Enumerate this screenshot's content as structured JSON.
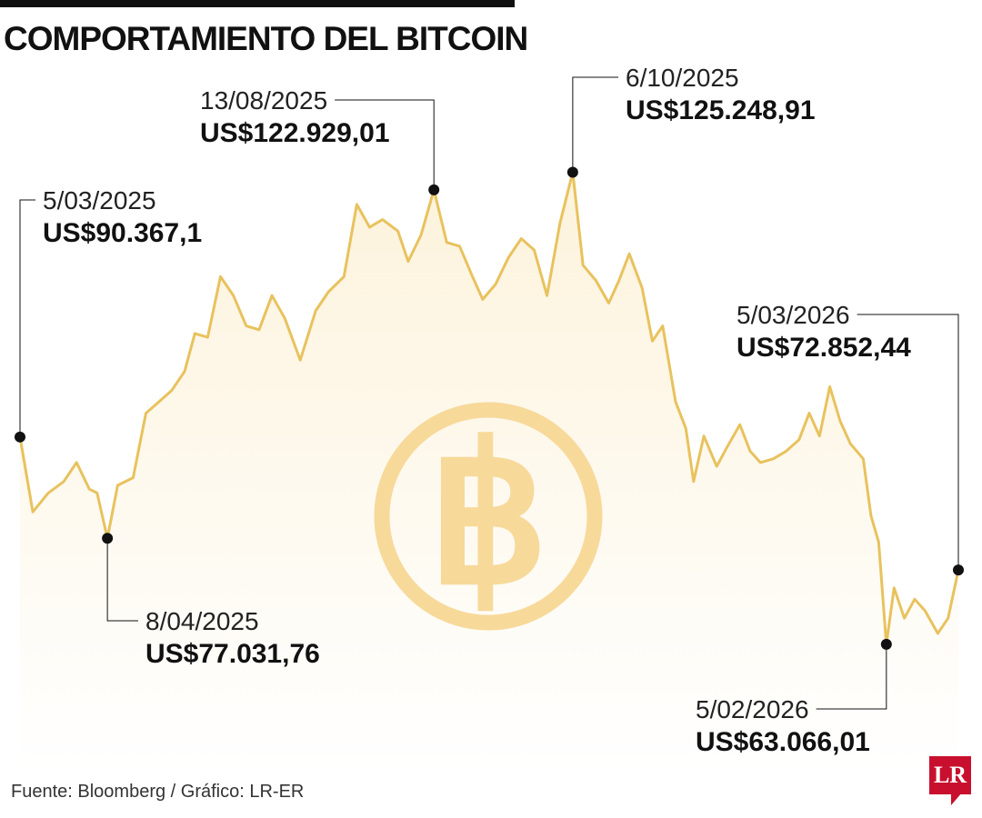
{
  "header": {
    "title": "COMPORTAMIENTO DEL BITCOIN"
  },
  "footer": {
    "source": "Fuente: Bloomberg / Gráfico: LR-ER",
    "logo_text": "LR"
  },
  "colors": {
    "line": "#e8c25e",
    "area": "#fdf3dc",
    "watermark": "#f7d99a",
    "marker": "#111111",
    "brand": "#c8102e"
  },
  "chart_data": {
    "type": "area",
    "title": "COMPORTAMIENTO DEL BITCOIN",
    "xlabel": "",
    "ylabel": "",
    "x_range": [
      "2025-03-05",
      "2026-03-05"
    ],
    "ylim": [
      50000,
      135000
    ],
    "grid": false,
    "legend": "none",
    "series": [
      {
        "points": [
          [
            "2025-03-05",
            90367
          ],
          [
            "2025-03-10",
            80500
          ],
          [
            "2025-03-16",
            83000
          ],
          [
            "2025-03-22",
            84500
          ],
          [
            "2025-03-27",
            87000
          ],
          [
            "2025-04-01",
            83500
          ],
          [
            "2025-04-04",
            83000
          ],
          [
            "2025-04-08",
            77032
          ],
          [
            "2025-04-12",
            84000
          ],
          [
            "2025-04-18",
            85000
          ],
          [
            "2025-04-23",
            93500
          ],
          [
            "2025-04-28",
            95000
          ],
          [
            "2025-05-03",
            96500
          ],
          [
            "2025-05-08",
            99000
          ],
          [
            "2025-05-12",
            104000
          ],
          [
            "2025-05-17",
            103500
          ],
          [
            "2025-05-22",
            111500
          ],
          [
            "2025-05-27",
            109000
          ],
          [
            "2025-06-01",
            105000
          ],
          [
            "2025-06-06",
            104500
          ],
          [
            "2025-06-11",
            109000
          ],
          [
            "2025-06-16",
            106000
          ],
          [
            "2025-06-22",
            100500
          ],
          [
            "2025-06-28",
            107000
          ],
          [
            "2025-07-03",
            109500
          ],
          [
            "2025-07-09",
            111500
          ],
          [
            "2025-07-14",
            121000
          ],
          [
            "2025-07-19",
            118000
          ],
          [
            "2025-07-24",
            119000
          ],
          [
            "2025-07-30",
            117500
          ],
          [
            "2025-08-03",
            113500
          ],
          [
            "2025-08-08",
            117000
          ],
          [
            "2025-08-13",
            122929
          ],
          [
            "2025-08-18",
            116000
          ],
          [
            "2025-08-23",
            115500
          ],
          [
            "2025-08-28",
            111500
          ],
          [
            "2025-09-01",
            108500
          ],
          [
            "2025-09-06",
            110500
          ],
          [
            "2025-09-11",
            114000
          ],
          [
            "2025-09-16",
            116500
          ],
          [
            "2025-09-21",
            115000
          ],
          [
            "2025-09-26",
            109000
          ],
          [
            "2025-10-01",
            118500
          ],
          [
            "2025-10-06",
            125249
          ],
          [
            "2025-10-10",
            113000
          ],
          [
            "2025-10-15",
            111000
          ],
          [
            "2025-10-20",
            108000
          ],
          [
            "2025-10-24",
            111000
          ],
          [
            "2025-10-28",
            114500
          ],
          [
            "2025-11-02",
            110000
          ],
          [
            "2025-11-06",
            103000
          ],
          [
            "2025-11-10",
            105000
          ],
          [
            "2025-11-15",
            95000
          ],
          [
            "2025-11-19",
            91500
          ],
          [
            "2025-11-22",
            84500
          ],
          [
            "2025-11-26",
            90500
          ],
          [
            "2025-12-01",
            86500
          ],
          [
            "2025-12-05",
            89000
          ],
          [
            "2025-12-10",
            92000
          ],
          [
            "2025-12-14",
            88500
          ],
          [
            "2025-12-18",
            87000
          ],
          [
            "2025-12-23",
            87500
          ],
          [
            "2025-12-28",
            88500
          ],
          [
            "2026-01-02",
            90000
          ],
          [
            "2026-01-06",
            93500
          ],
          [
            "2026-01-10",
            90500
          ],
          [
            "2026-01-14",
            97000
          ],
          [
            "2026-01-18",
            92500
          ],
          [
            "2026-01-22",
            89500
          ],
          [
            "2026-01-27",
            87500
          ],
          [
            "2026-01-30",
            80000
          ],
          [
            "2026-02-02",
            76500
          ],
          [
            "2026-02-05",
            63066
          ],
          [
            "2026-02-08",
            70500
          ],
          [
            "2026-02-12",
            66500
          ],
          [
            "2026-02-16",
            69000
          ],
          [
            "2026-02-20",
            67500
          ],
          [
            "2026-02-25",
            64500
          ],
          [
            "2026-03-01",
            66500
          ],
          [
            "2026-03-05",
            72852
          ]
        ]
      }
    ],
    "annotations": [
      {
        "date": "5/03/2025",
        "value": "US$90.367,1",
        "x": "2025-03-05",
        "y": 90367
      },
      {
        "date": "8/04/2025",
        "value": "US$77.031,76",
        "x": "2025-04-08",
        "y": 77032
      },
      {
        "date": "13/08/2025",
        "value": "US$122.929,01",
        "x": "2025-08-13",
        "y": 122929
      },
      {
        "date": "6/10/2025",
        "value": "US$125.248,91",
        "x": "2025-10-06",
        "y": 125249
      },
      {
        "date": "5/02/2026",
        "value": "US$63.066,01",
        "x": "2026-02-05",
        "y": 63066
      },
      {
        "date": "5/03/2026",
        "value": "US$72.852,44",
        "x": "2026-03-05",
        "y": 72852
      }
    ],
    "watermark_icon": "bitcoin-icon"
  }
}
